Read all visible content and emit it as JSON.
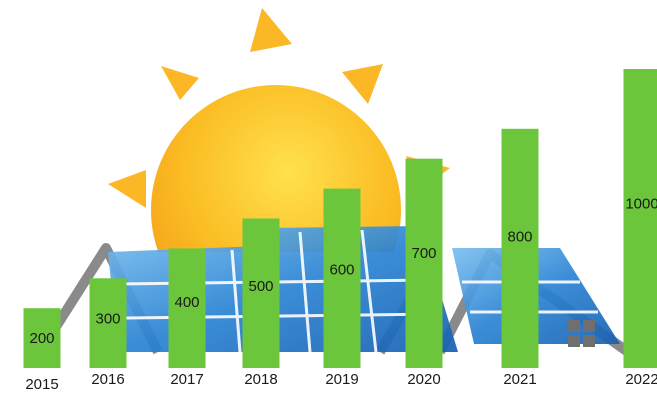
{
  "chart_data": {
    "type": "bar",
    "categories": [
      "2015",
      "2016",
      "2017",
      "2018",
      "2019",
      "2020",
      "2021",
      "2022"
    ],
    "values": [
      200,
      300,
      400,
      500,
      600,
      700,
      800,
      1000
    ],
    "title": "",
    "xlabel": "",
    "ylabel": "",
    "ylim": [
      0,
      1000
    ],
    "grid": false,
    "legend": "none"
  },
  "colors": {
    "bar": "#6cc63c",
    "sun_outer": "#fbb726",
    "sun_inner": "#ffd24a",
    "panel": "#1f72c6",
    "panel_light": "#6fb4ea",
    "roof": "#8a8a8a",
    "window": "#6f6f6f"
  },
  "background": {
    "illustration": "sun-over-solar-panel-houses",
    "icons": [
      "sun-icon",
      "solar-panel-icon",
      "house-icon",
      "window-icon"
    ]
  }
}
